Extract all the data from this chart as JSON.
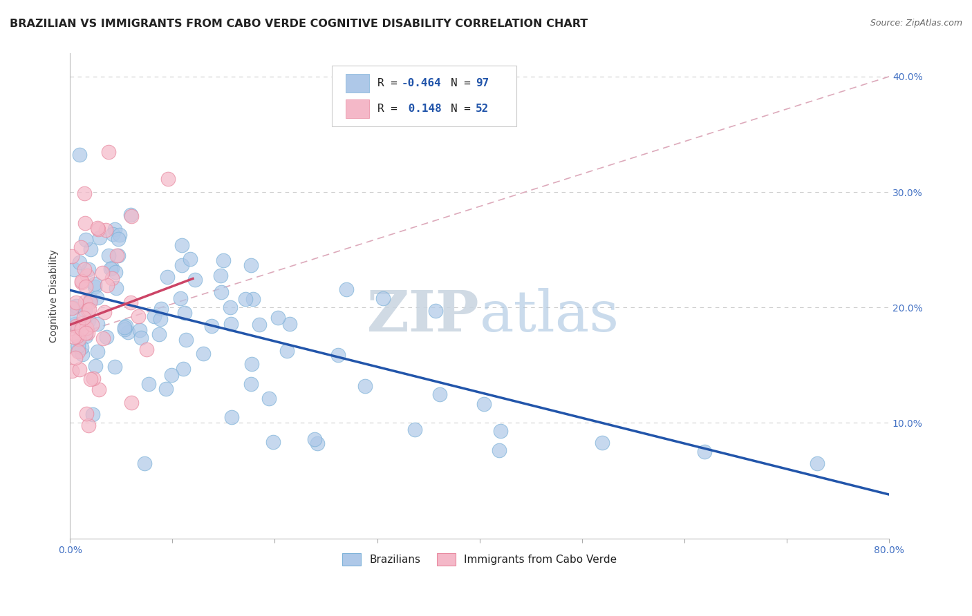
{
  "title": "BRAZILIAN VS IMMIGRANTS FROM CABO VERDE COGNITIVE DISABILITY CORRELATION CHART",
  "source": "Source: ZipAtlas.com",
  "ylabel": "Cognitive Disability",
  "xlim": [
    0.0,
    0.8
  ],
  "ylim": [
    0.0,
    0.42
  ],
  "xticks": [
    0.0,
    0.1,
    0.2,
    0.3,
    0.4,
    0.5,
    0.6,
    0.7,
    0.8
  ],
  "xticklabels_show": [
    "0.0%",
    "",
    "",
    "",
    "",
    "",
    "",
    "",
    "80.0%"
  ],
  "yticks": [
    0.0,
    0.1,
    0.2,
    0.3,
    0.4
  ],
  "yticklabels": [
    "",
    "10.0%",
    "20.0%",
    "30.0%",
    "40.0%"
  ],
  "grid_color": "#cccccc",
  "background_color": "#ffffff",
  "blue_color": "#aec8e8",
  "blue_edge_color": "#7fb3d9",
  "pink_color": "#f4b8c8",
  "pink_edge_color": "#e88aa0",
  "blue_line_color": "#2255aa",
  "pink_line_color": "#cc4466",
  "dashed_line_color": "#ddaabb",
  "r_blue": -0.464,
  "n_blue": 97,
  "r_pink": 0.148,
  "n_pink": 52,
  "legend_label_blue": "Brazilians",
  "legend_label_pink": "Immigrants from Cabo Verde",
  "watermark_zip": "ZIP",
  "watermark_atlas": "atlas",
  "title_fontsize": 11.5,
  "axis_label_fontsize": 10,
  "tick_fontsize": 10,
  "legend_text_color": "#222222",
  "legend_number_color": "#2255aa",
  "right_tick_color": "#4472C4"
}
